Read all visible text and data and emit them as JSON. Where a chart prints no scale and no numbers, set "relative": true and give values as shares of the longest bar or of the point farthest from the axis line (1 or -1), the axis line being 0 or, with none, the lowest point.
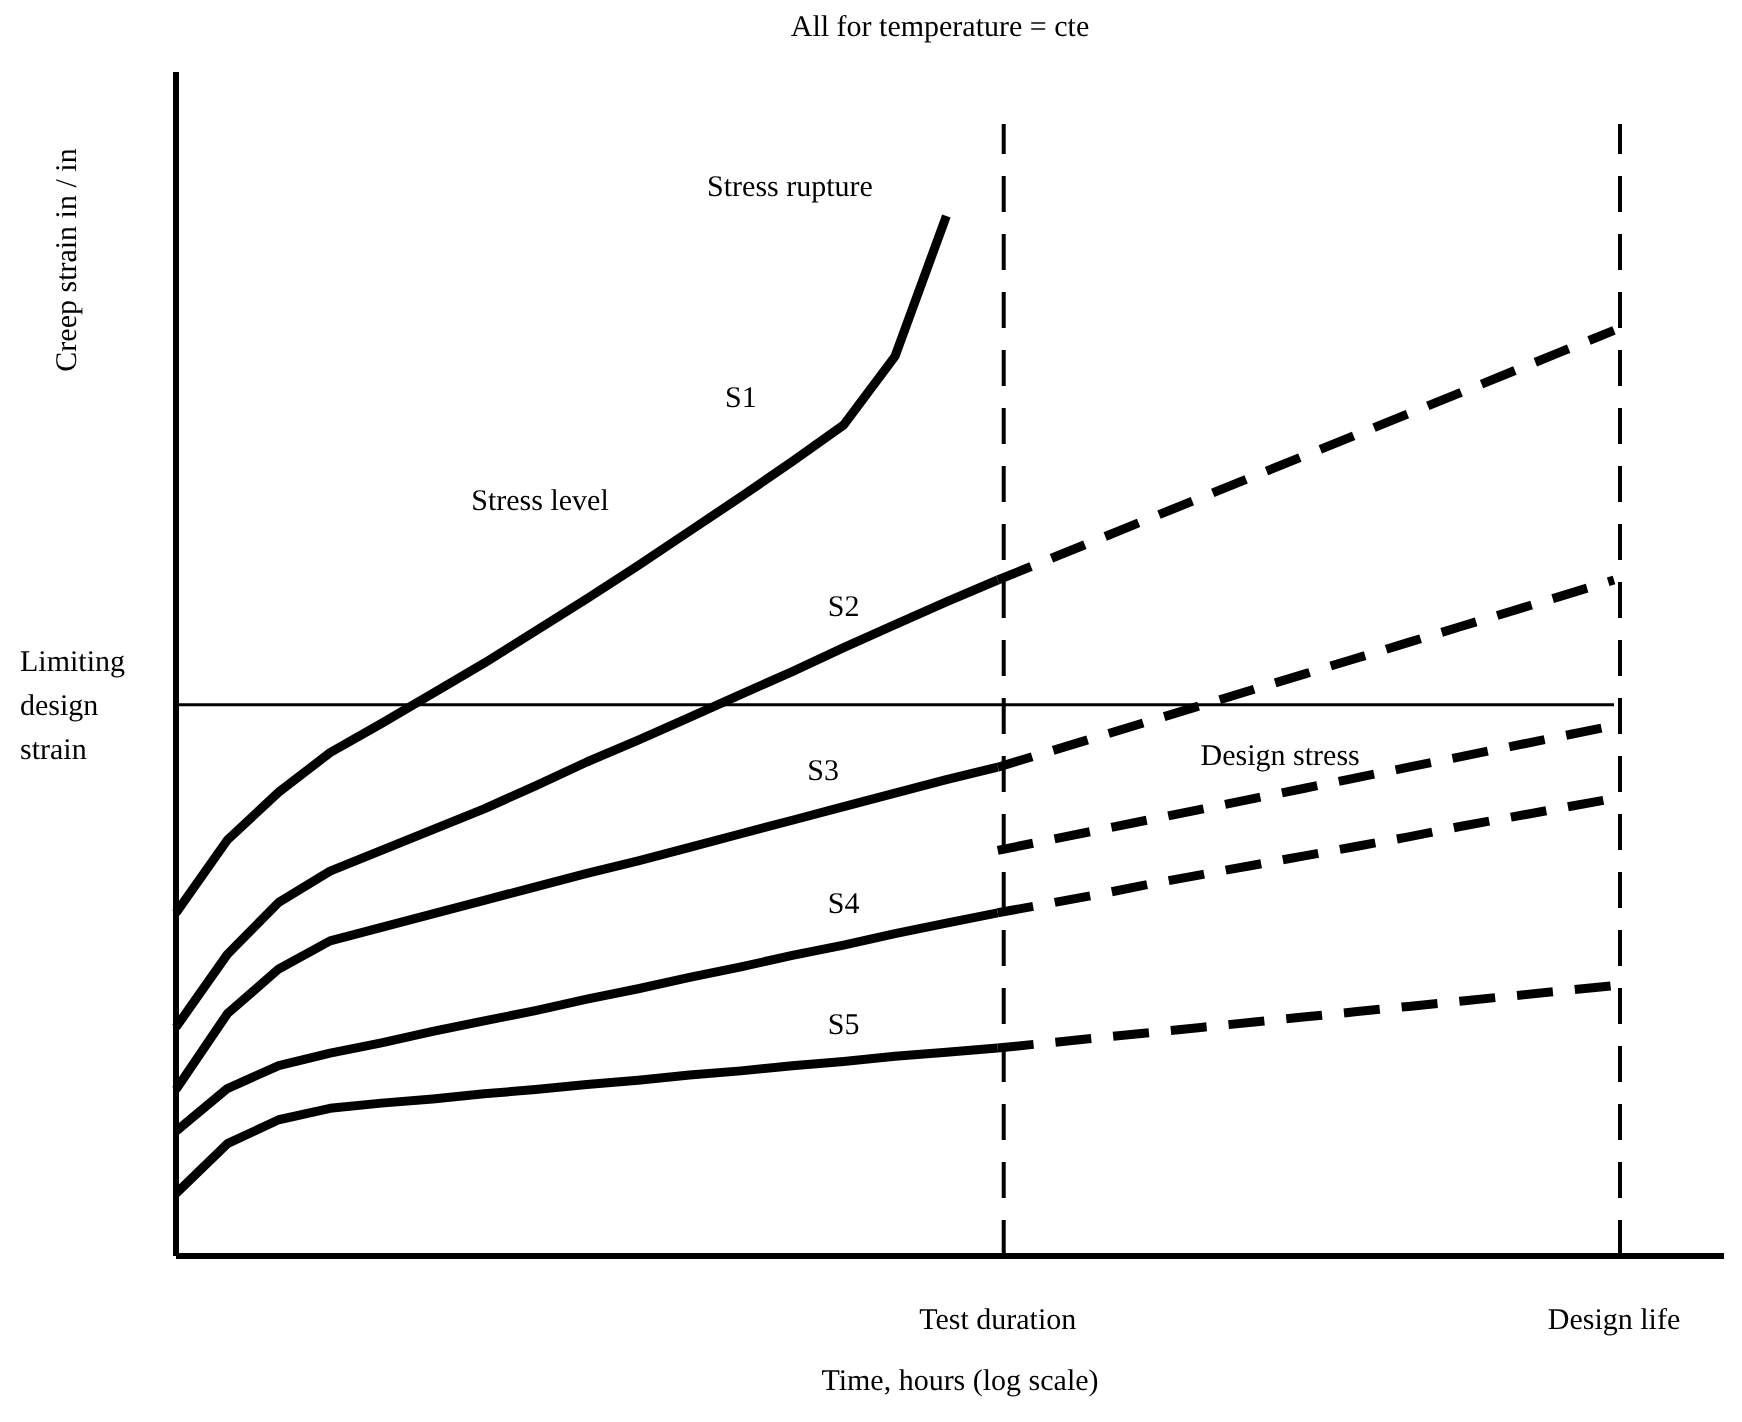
{
  "chart_data": {
    "type": "line",
    "title": "All for temperature = cte",
    "xlabel": "Time, hours (log scale)",
    "ylabel": "Creep strain in / in",
    "relative": true,
    "tick_labels": "x",
    "categories": [
      null,
      null,
      null,
      null,
      null,
      null,
      null,
      null,
      null,
      null,
      null,
      null,
      null,
      null,
      null,
      null,
      "Test duration",
      null,
      null,
      null,
      null,
      null,
      null,
      null,
      null,
      null,
      null,
      null,
      "Design life"
    ],
    "series": [
      {
        "name": "S1",
        "color": "#000000",
        "line_style": "solid",
        "values": [
          0.33,
          0.4,
          0.446,
          0.484,
          0.512,
          0.541,
          0.57,
          0.601,
          0.632,
          0.664,
          0.697,
          0.73,
          0.764,
          0.799,
          0.865,
          1,
          null,
          null,
          null,
          null,
          null,
          null,
          null,
          null,
          null,
          null,
          null,
          null,
          null
        ]
      },
      {
        "name": "S2",
        "color": "#000000",
        "line_style": "solid",
        "values": [
          0.22,
          0.29,
          0.34,
          0.37,
          0.39,
          0.41,
          0.43,
          0.452,
          0.475,
          0.496,
          0.518,
          0.54,
          0.562,
          0.585,
          0.607,
          0.629,
          0.65,
          null,
          null,
          null,
          null,
          null,
          null,
          null,
          null,
          null,
          null,
          null,
          null
        ]
      },
      {
        "color": "#000000",
        "line_style": "dashed",
        "values": [
          null,
          null,
          null,
          null,
          null,
          null,
          null,
          null,
          null,
          null,
          null,
          null,
          null,
          null,
          null,
          null,
          0.65,
          0.67,
          0.69,
          0.71,
          0.73,
          0.75,
          0.77,
          0.79,
          0.81,
          0.83,
          0.85,
          0.87,
          0.89
        ]
      },
      {
        "name": "S3",
        "color": "#000000",
        "line_style": "solid",
        "values": [
          0.16,
          0.233,
          0.276,
          0.303,
          0.316,
          0.329,
          0.342,
          0.355,
          0.368,
          0.38,
          0.393,
          0.406,
          0.419,
          0.432,
          0.445,
          0.458,
          0.47,
          null,
          null,
          null,
          null,
          null,
          null,
          null,
          null,
          null,
          null,
          null,
          null
        ]
      },
      {
        "color": "#000000",
        "line_style": "dashed",
        "values": [
          null,
          null,
          null,
          null,
          null,
          null,
          null,
          null,
          null,
          null,
          null,
          null,
          null,
          null,
          null,
          null,
          0.47,
          0.485,
          0.5,
          0.515,
          0.53,
          0.545,
          0.56,
          0.575,
          0.59,
          0.605,
          0.62,
          0.635,
          0.65
        ]
      },
      {
        "name": "S4",
        "color": "#000000",
        "line_style": "solid",
        "values": [
          0.12,
          0.161,
          0.183,
          0.195,
          0.205,
          0.216,
          0.226,
          0.236,
          0.247,
          0.257,
          0.268,
          0.278,
          0.289,
          0.299,
          0.31,
          0.32,
          0.33,
          null,
          null,
          null,
          null,
          null,
          null,
          null,
          null,
          null,
          null,
          null,
          null
        ]
      },
      {
        "color": "#000000",
        "line_style": "dashed",
        "values": [
          null,
          null,
          null,
          null,
          null,
          null,
          null,
          null,
          null,
          null,
          null,
          null,
          null,
          null,
          null,
          null,
          0.33,
          0.339,
          0.348,
          0.358,
          0.367,
          0.376,
          0.385,
          0.394,
          0.403,
          0.413,
          0.422,
          0.431,
          0.44
        ]
      },
      {
        "name": "S5",
        "color": "#000000",
        "line_style": "solid",
        "values": [
          0.06,
          0.108,
          0.131,
          0.142,
          0.147,
          0.151,
          0.156,
          0.16,
          0.165,
          0.169,
          0.174,
          0.178,
          0.183,
          0.187,
          0.192,
          0.196,
          0.2,
          null,
          null,
          null,
          null,
          null,
          null,
          null,
          null,
          null,
          null,
          null,
          null
        ]
      },
      {
        "color": "#000000",
        "line_style": "dashed",
        "values": [
          null,
          null,
          null,
          null,
          null,
          null,
          null,
          null,
          null,
          null,
          null,
          null,
          null,
          null,
          null,
          null,
          0.2,
          0.205,
          0.21,
          0.215,
          0.22,
          0.225,
          0.23,
          0.235,
          0.24,
          0.245,
          0.25,
          0.255,
          0.26
        ]
      },
      {
        "name": "Design stress",
        "color": "#000000",
        "line_style": "dashed",
        "values": [
          null,
          null,
          null,
          null,
          null,
          null,
          null,
          null,
          null,
          null,
          null,
          null,
          null,
          null,
          null,
          null,
          0.39,
          0.4,
          0.41,
          0.42,
          0.43,
          0.44,
          0.45,
          0.46,
          0.47,
          0.48,
          0.49,
          0.5,
          0.51
        ]
      }
    ],
    "ref_lines": [
      {
        "axis": "y",
        "value": 0.53,
        "label": "Limiting design strain",
        "line_style": "solid"
      },
      {
        "axis": "x",
        "value": "Test duration",
        "line_style": "dashed"
      },
      {
        "axis": "x",
        "value": "Design life",
        "line_style": "dashed"
      }
    ],
    "annotations": [
      "Stress rupture",
      "Stress level"
    ]
  }
}
